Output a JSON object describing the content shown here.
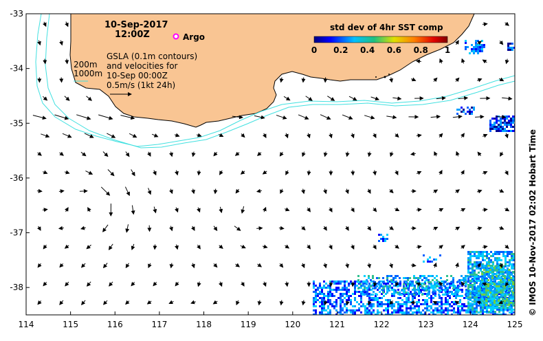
{
  "title": {
    "date": "10-Sep-2017",
    "time": "12:00Z"
  },
  "argo": {
    "label": "Argo",
    "marker_color": "#ff00ff"
  },
  "legend": {
    "line1": "GSLA (0.1m contours)",
    "line2": "and velocities for",
    "line3": "10-Sep 00:00Z",
    "line4": "0.5m/s (1kt 24h)"
  },
  "depth_labels": {
    "shallow": "200m",
    "deep": "1000m",
    "contour_color": "#40e0e0"
  },
  "colorbar": {
    "title": "std dev of 4hr SST comp",
    "ticks": [
      "0",
      "0.2",
      "0.4",
      "0.6",
      "0.8",
      "1"
    ]
  },
  "axes": {
    "x_ticks": [
      "114",
      "115",
      "116",
      "117",
      "118",
      "119",
      "120",
      "121",
      "122",
      "123",
      "124",
      "125"
    ],
    "y_ticks": [
      "-33",
      "-34",
      "-35",
      "-36",
      "-37",
      "-38"
    ]
  },
  "colors": {
    "land": "#f9c593",
    "water": "#ffffff"
  },
  "credit": "© IMOS 10-Nov-2017 02:02 Hobart Time"
}
